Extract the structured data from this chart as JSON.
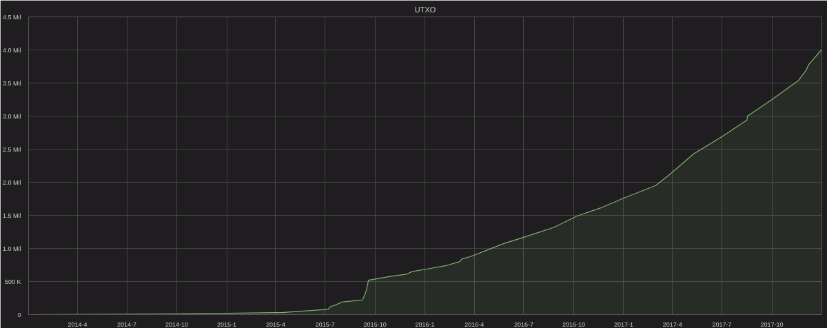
{
  "chart_data": {
    "type": "area",
    "title": "UTXO",
    "x": [
      "2014-01-01",
      "2014-10-01",
      "2015-01-01",
      "2015-04-01",
      "2015-04-12",
      "2015-07-07",
      "2015-07-11",
      "2015-07-22",
      "2015-08-01",
      "2015-09-08",
      "2015-09-15",
      "2015-09-19",
      "2015-10-31",
      "2015-11-28",
      "2015-12-08",
      "2016-01-06",
      "2016-02-09",
      "2016-03-05",
      "2016-03-09",
      "2016-03-26",
      "2016-05-27",
      "2016-06-24",
      "2016-07-24",
      "2016-08-26",
      "2016-10-07",
      "2016-11-19",
      "2017-01-01",
      "2017-03-01",
      "2017-03-30",
      "2017-05-10",
      "2017-07-01",
      "2017-08-16",
      "2017-08-17",
      "2017-10-01",
      "2017-11-19",
      "2017-12-02",
      "2017-12-08",
      "2017-12-31"
    ],
    "series": [
      {
        "color": "#7eb26d",
        "values": [
          0,
          0.01,
          0.02,
          0.03,
          0.03,
          0.08,
          0.12,
          0.15,
          0.19,
          0.22,
          0.36,
          0.52,
          0.58,
          0.61,
          0.65,
          0.69,
          0.74,
          0.8,
          0.84,
          0.88,
          1.08,
          1.15,
          1.23,
          1.32,
          1.49,
          1.61,
          1.76,
          1.95,
          2.14,
          2.43,
          2.69,
          2.94,
          3.0,
          3.25,
          3.54,
          3.68,
          3.78,
          4.0
        ]
      }
    ],
    "xlim": [
      "2014-01-01",
      "2018-01-01"
    ],
    "xticks": [
      {
        "value": "2014-04-01",
        "label": "2014-4"
      },
      {
        "value": "2014-07-01",
        "label": "2014-7"
      },
      {
        "value": "2014-10-01",
        "label": "2014-10"
      },
      {
        "value": "2015-01-01",
        "label": "2015-1"
      },
      {
        "value": "2015-04-01",
        "label": "2015-4"
      },
      {
        "value": "2015-07-01",
        "label": "2015-7"
      },
      {
        "value": "2015-10-01",
        "label": "2015-10"
      },
      {
        "value": "2016-01-01",
        "label": "2016-1"
      },
      {
        "value": "2016-04-01",
        "label": "2016-4"
      },
      {
        "value": "2016-07-01",
        "label": "2016-7"
      },
      {
        "value": "2016-10-01",
        "label": "2016-10"
      },
      {
        "value": "2017-01-01",
        "label": "2017-1"
      },
      {
        "value": "2017-04-01",
        "label": "2017-4"
      },
      {
        "value": "2017-07-01",
        "label": "2017-7"
      },
      {
        "value": "2017-10-01",
        "label": "2017-10"
      }
    ],
    "ylim": [
      0,
      4.5
    ],
    "yticks": [
      0,
      {
        "value": 0.5,
        "label": "500 K"
      },
      {
        "value": 1,
        "label": "1.0 Mil"
      },
      {
        "value": 1.5,
        "label": "1.5 Mil"
      },
      {
        "value": 2,
        "label": "2.0 Mil"
      },
      {
        "value": 2.5,
        "label": "2.5 Mil"
      },
      {
        "value": 3,
        "label": "3.0 Mil"
      },
      {
        "value": 3.5,
        "label": "3.5 Mil"
      },
      {
        "value": 4,
        "label": "4.0 Mil"
      },
      {
        "value": 4.5,
        "label": "4.5 Mil"
      }
    ],
    "grid": true
  }
}
